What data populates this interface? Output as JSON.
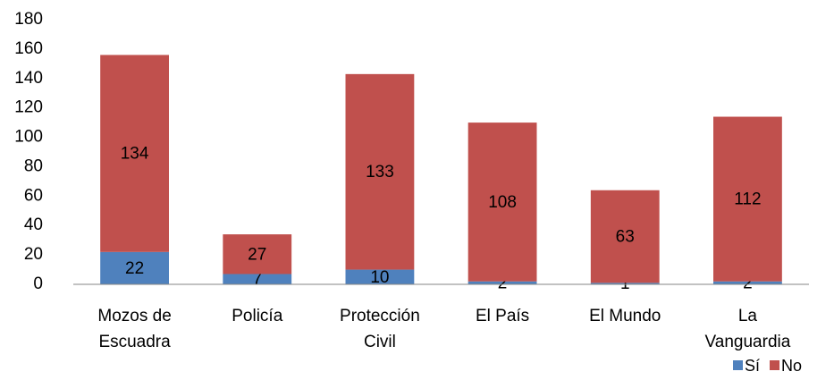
{
  "chart_data": {
    "type": "stacked_bar",
    "categories": [
      [
        "Mozos de",
        "Escuadra"
      ],
      [
        "Policía"
      ],
      [
        "Protección",
        "Civil"
      ],
      [
        "El País"
      ],
      [
        "El Mundo"
      ],
      [
        "La",
        "Vanguardia"
      ]
    ],
    "series": [
      {
        "name": "Sí",
        "color": "#4f81bd",
        "values": [
          22,
          7,
          10,
          2,
          1,
          2
        ]
      },
      {
        "name": "No",
        "color": "#c0504d",
        "values": [
          134,
          27,
          133,
          108,
          63,
          112
        ]
      }
    ],
    "ylim": [
      0,
      180
    ],
    "yticks": [
      0,
      20,
      40,
      60,
      80,
      100,
      120,
      140,
      160,
      180
    ],
    "grid": false,
    "legend": "bottom-right"
  }
}
